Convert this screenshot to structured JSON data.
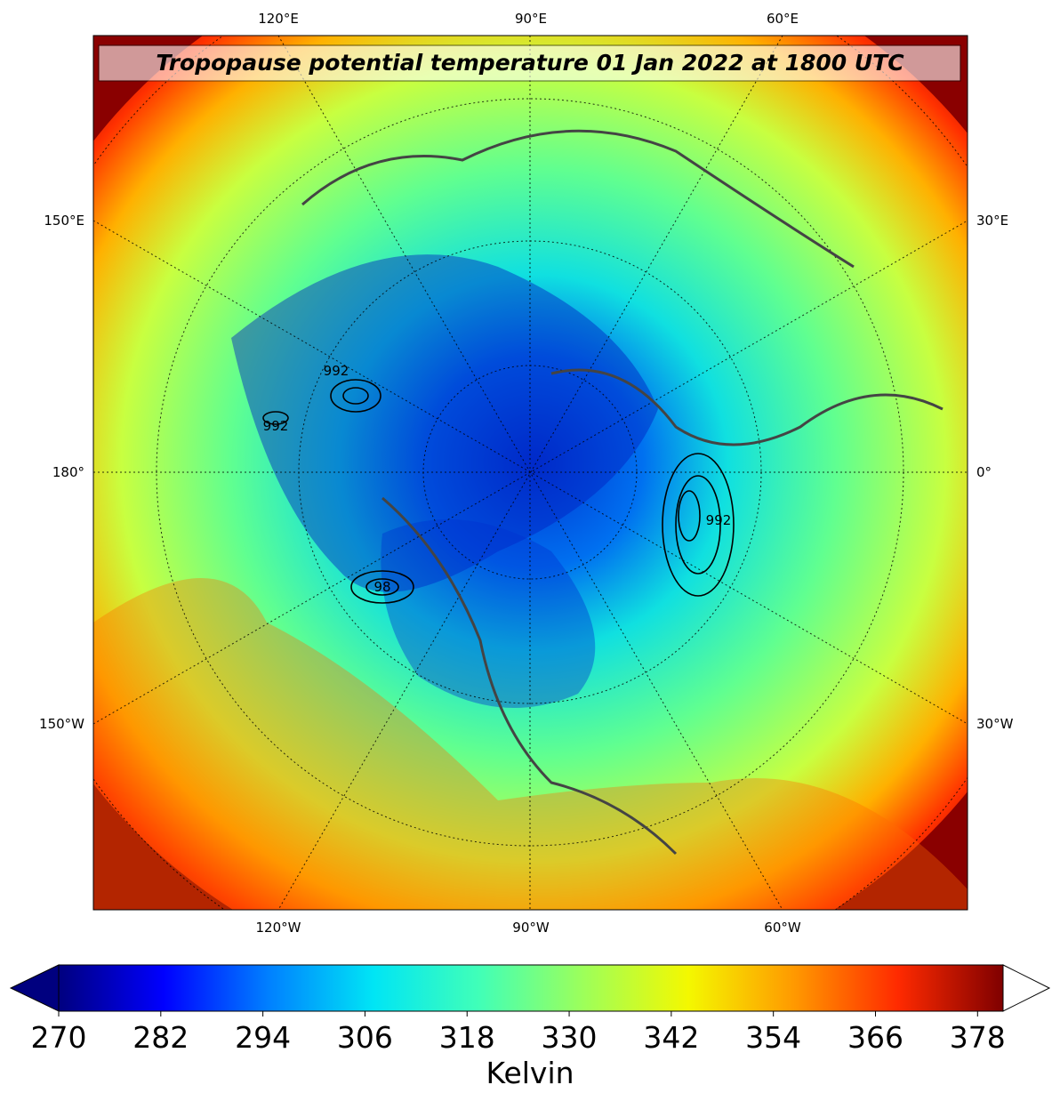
{
  "title": "Tropopause potential temperature 01 Jan 2022 at 1800 UTC",
  "top_labels": [
    "120°E",
    "90°E",
    "60°E"
  ],
  "bottom_labels": [
    "120°W",
    "90°W",
    "60°W"
  ],
  "left_labels": [
    "150°E",
    "180°",
    "150°W"
  ],
  "right_labels": [
    "30°E",
    "0°",
    "30°W"
  ],
  "contour_labels": [
    "992",
    "992",
    "992",
    "98"
  ],
  "colorbar": {
    "label": "Kelvin",
    "clim": [
      270,
      381
    ],
    "ticks": [
      270,
      282,
      294,
      306,
      318,
      330,
      342,
      354,
      366,
      378
    ],
    "colors": [
      "#00007f",
      "#0000ff",
      "#0080ff",
      "#00e5f5",
      "#40ffb8",
      "#9dff5a",
      "#f4f800",
      "#ff9a00",
      "#ff2a00",
      "#7f0000"
    ],
    "under_color": "#00007f",
    "over_color": "#ffffff"
  }
}
